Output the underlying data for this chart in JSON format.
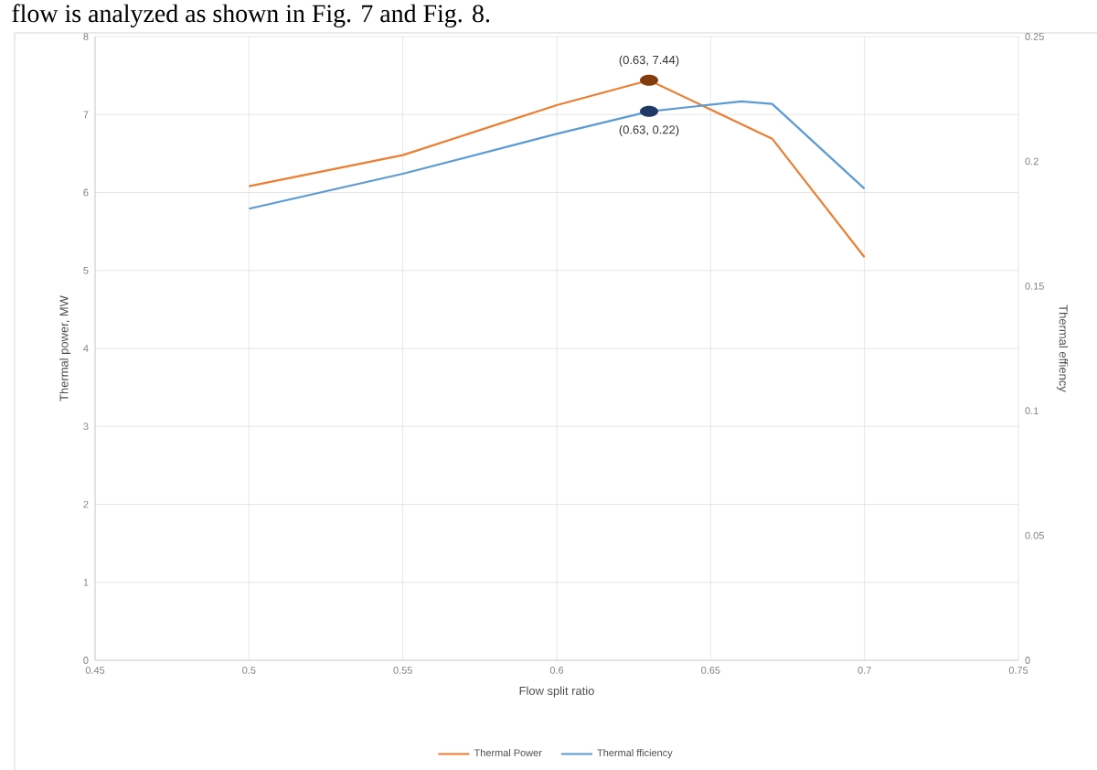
{
  "chart_data": {
    "type": "line",
    "xlabel": "Flow split ratio",
    "ylabel": "Thermal power, MW",
    "y2label": "Thermal effiency",
    "xlim": [
      0.45,
      0.75
    ],
    "xticks": [
      0.45,
      0.5,
      0.55,
      0.6,
      0.65,
      0.7,
      0.75
    ],
    "ylim": [
      0,
      8
    ],
    "yticks": [
      0,
      1,
      2,
      3,
      4,
      5,
      6,
      7,
      8
    ],
    "y2lim": [
      0,
      0.25
    ],
    "y2ticks": [
      0,
      0.05,
      0.1,
      0.15,
      0.2,
      0.25
    ],
    "grid": true,
    "legend": "bottom",
    "series": [
      {
        "name": "Thermal Power",
        "color": "#ed7d31",
        "x": [
          0.5,
          0.55,
          0.6,
          0.63,
          0.67,
          0.7
        ],
        "values": [
          6.08,
          6.48,
          7.12,
          7.44,
          6.69,
          5.17
        ]
      },
      {
        "name": "Thermal fficiency",
        "color": "#5b9bd5",
        "axis": "y2",
        "x": [
          0.5,
          0.55,
          0.6,
          0.63,
          0.66,
          0.67,
          0.7
        ],
        "values": [
          0.181,
          0.195,
          0.211,
          0.22,
          0.224,
          0.223,
          0.189
        ]
      },
      {
        "type": "scatter",
        "color": "#843c0c",
        "x": [
          0.63
        ],
        "values": [
          7.44
        ],
        "value_labels": [
          "(0.63, 7.44)"
        ]
      },
      {
        "type": "scatter",
        "color": "#1f3864",
        "axis": "y2",
        "x": [
          0.63
        ],
        "values": [
          0.22
        ],
        "value_labels": [
          "(0.63, 0.22)"
        ]
      }
    ],
    "annotations": [
      "flow is analyzed as shown in Fig. 7 and Fig. 8."
    ]
  }
}
